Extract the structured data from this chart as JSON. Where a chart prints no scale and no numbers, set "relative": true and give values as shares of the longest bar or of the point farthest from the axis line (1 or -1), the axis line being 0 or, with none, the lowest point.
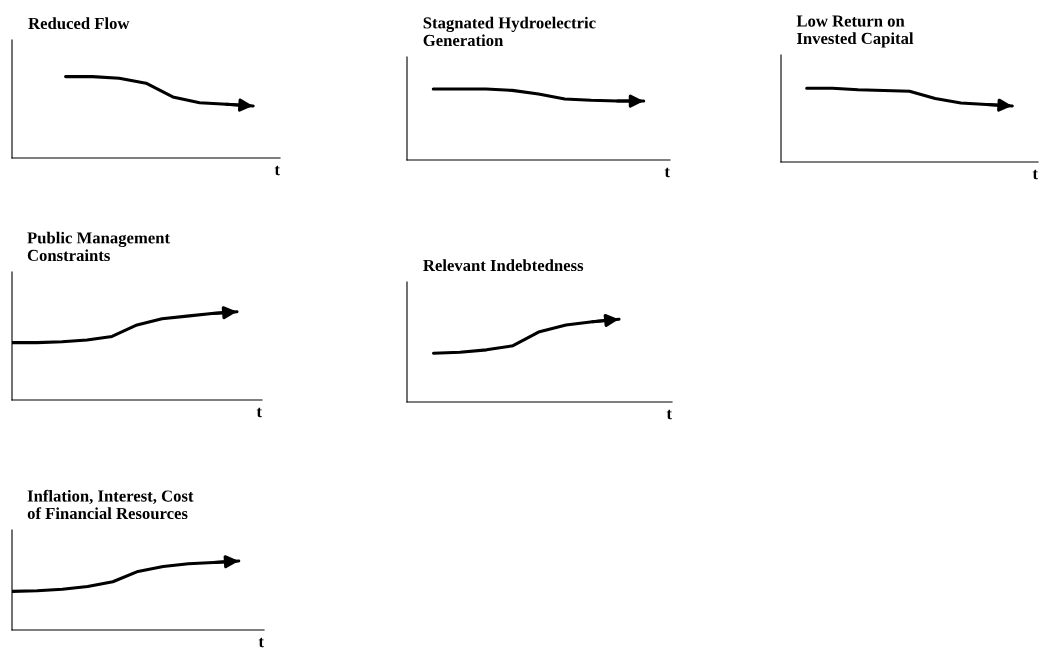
{
  "chart_data": [
    {
      "type": "line",
      "title": "Reduced Flow",
      "xlabel": "t",
      "relative": true,
      "categories": [
        null,
        null,
        null,
        null,
        null,
        null,
        null,
        null,
        null,
        null,
        null
      ],
      "series": [
        {
          "color": "#000000",
          "values": [
            null,
            null,
            1,
            1,
            0.98,
            0.92,
            0.75,
            0.68,
            0.66,
            0.64,
            null
          ]
        }
      ]
    },
    {
      "type": "line",
      "title": "Stagnated Hydroelectric\nGeneration",
      "xlabel": "t",
      "relative": true,
      "categories": [
        null,
        null,
        null,
        null,
        null,
        null,
        null,
        null,
        null,
        null,
        null
      ],
      "series": [
        {
          "color": "#000000",
          "values": [
            null,
            1,
            1,
            1,
            0.98,
            0.93,
            0.86,
            0.84,
            0.83,
            0.83,
            null
          ]
        }
      ]
    },
    {
      "type": "line",
      "title": "Low Return on\nInvested Capital",
      "xlabel": "t",
      "relative": true,
      "categories": [
        null,
        null,
        null,
        null,
        null,
        null,
        null,
        null,
        null,
        null,
        null
      ],
      "series": [
        {
          "color": "#000000",
          "values": [
            null,
            1,
            1,
            0.98,
            0.97,
            0.96,
            0.86,
            0.8,
            0.78,
            0.76,
            null
          ]
        }
      ]
    },
    {
      "type": "line",
      "title": "Public Management\nConstraints",
      "xlabel": "t",
      "relative": true,
      "categories": [
        null,
        null,
        null,
        null,
        null,
        null,
        null,
        null,
        null,
        null,
        null
      ],
      "series": [
        {
          "color": "#000000",
          "values": [
            0.65,
            0.65,
            0.66,
            0.68,
            0.72,
            0.85,
            0.92,
            0.95,
            0.98,
            1,
            null
          ]
        }
      ]
    },
    {
      "type": "line",
      "title": "Relevant Indebtedness",
      "xlabel": "t",
      "relative": true,
      "categories": [
        null,
        null,
        null,
        null,
        null,
        null,
        null,
        null,
        null,
        null,
        null
      ],
      "series": [
        {
          "color": "#000000",
          "values": [
            null,
            0.59,
            0.6,
            0.63,
            0.68,
            0.85,
            0.93,
            0.97,
            1,
            null,
            null
          ]
        }
      ]
    },
    {
      "type": "line",
      "title": "Inflation, Interest, Cost\nof Financial Resources",
      "xlabel": "t",
      "relative": true,
      "categories": [
        null,
        null,
        null,
        null,
        null,
        null,
        null,
        null,
        null,
        null,
        null
      ],
      "series": [
        {
          "color": "#000000",
          "values": [
            0.56,
            0.57,
            0.59,
            0.63,
            0.7,
            0.85,
            0.92,
            0.96,
            0.98,
            1,
            null
          ]
        }
      ]
    }
  ]
}
